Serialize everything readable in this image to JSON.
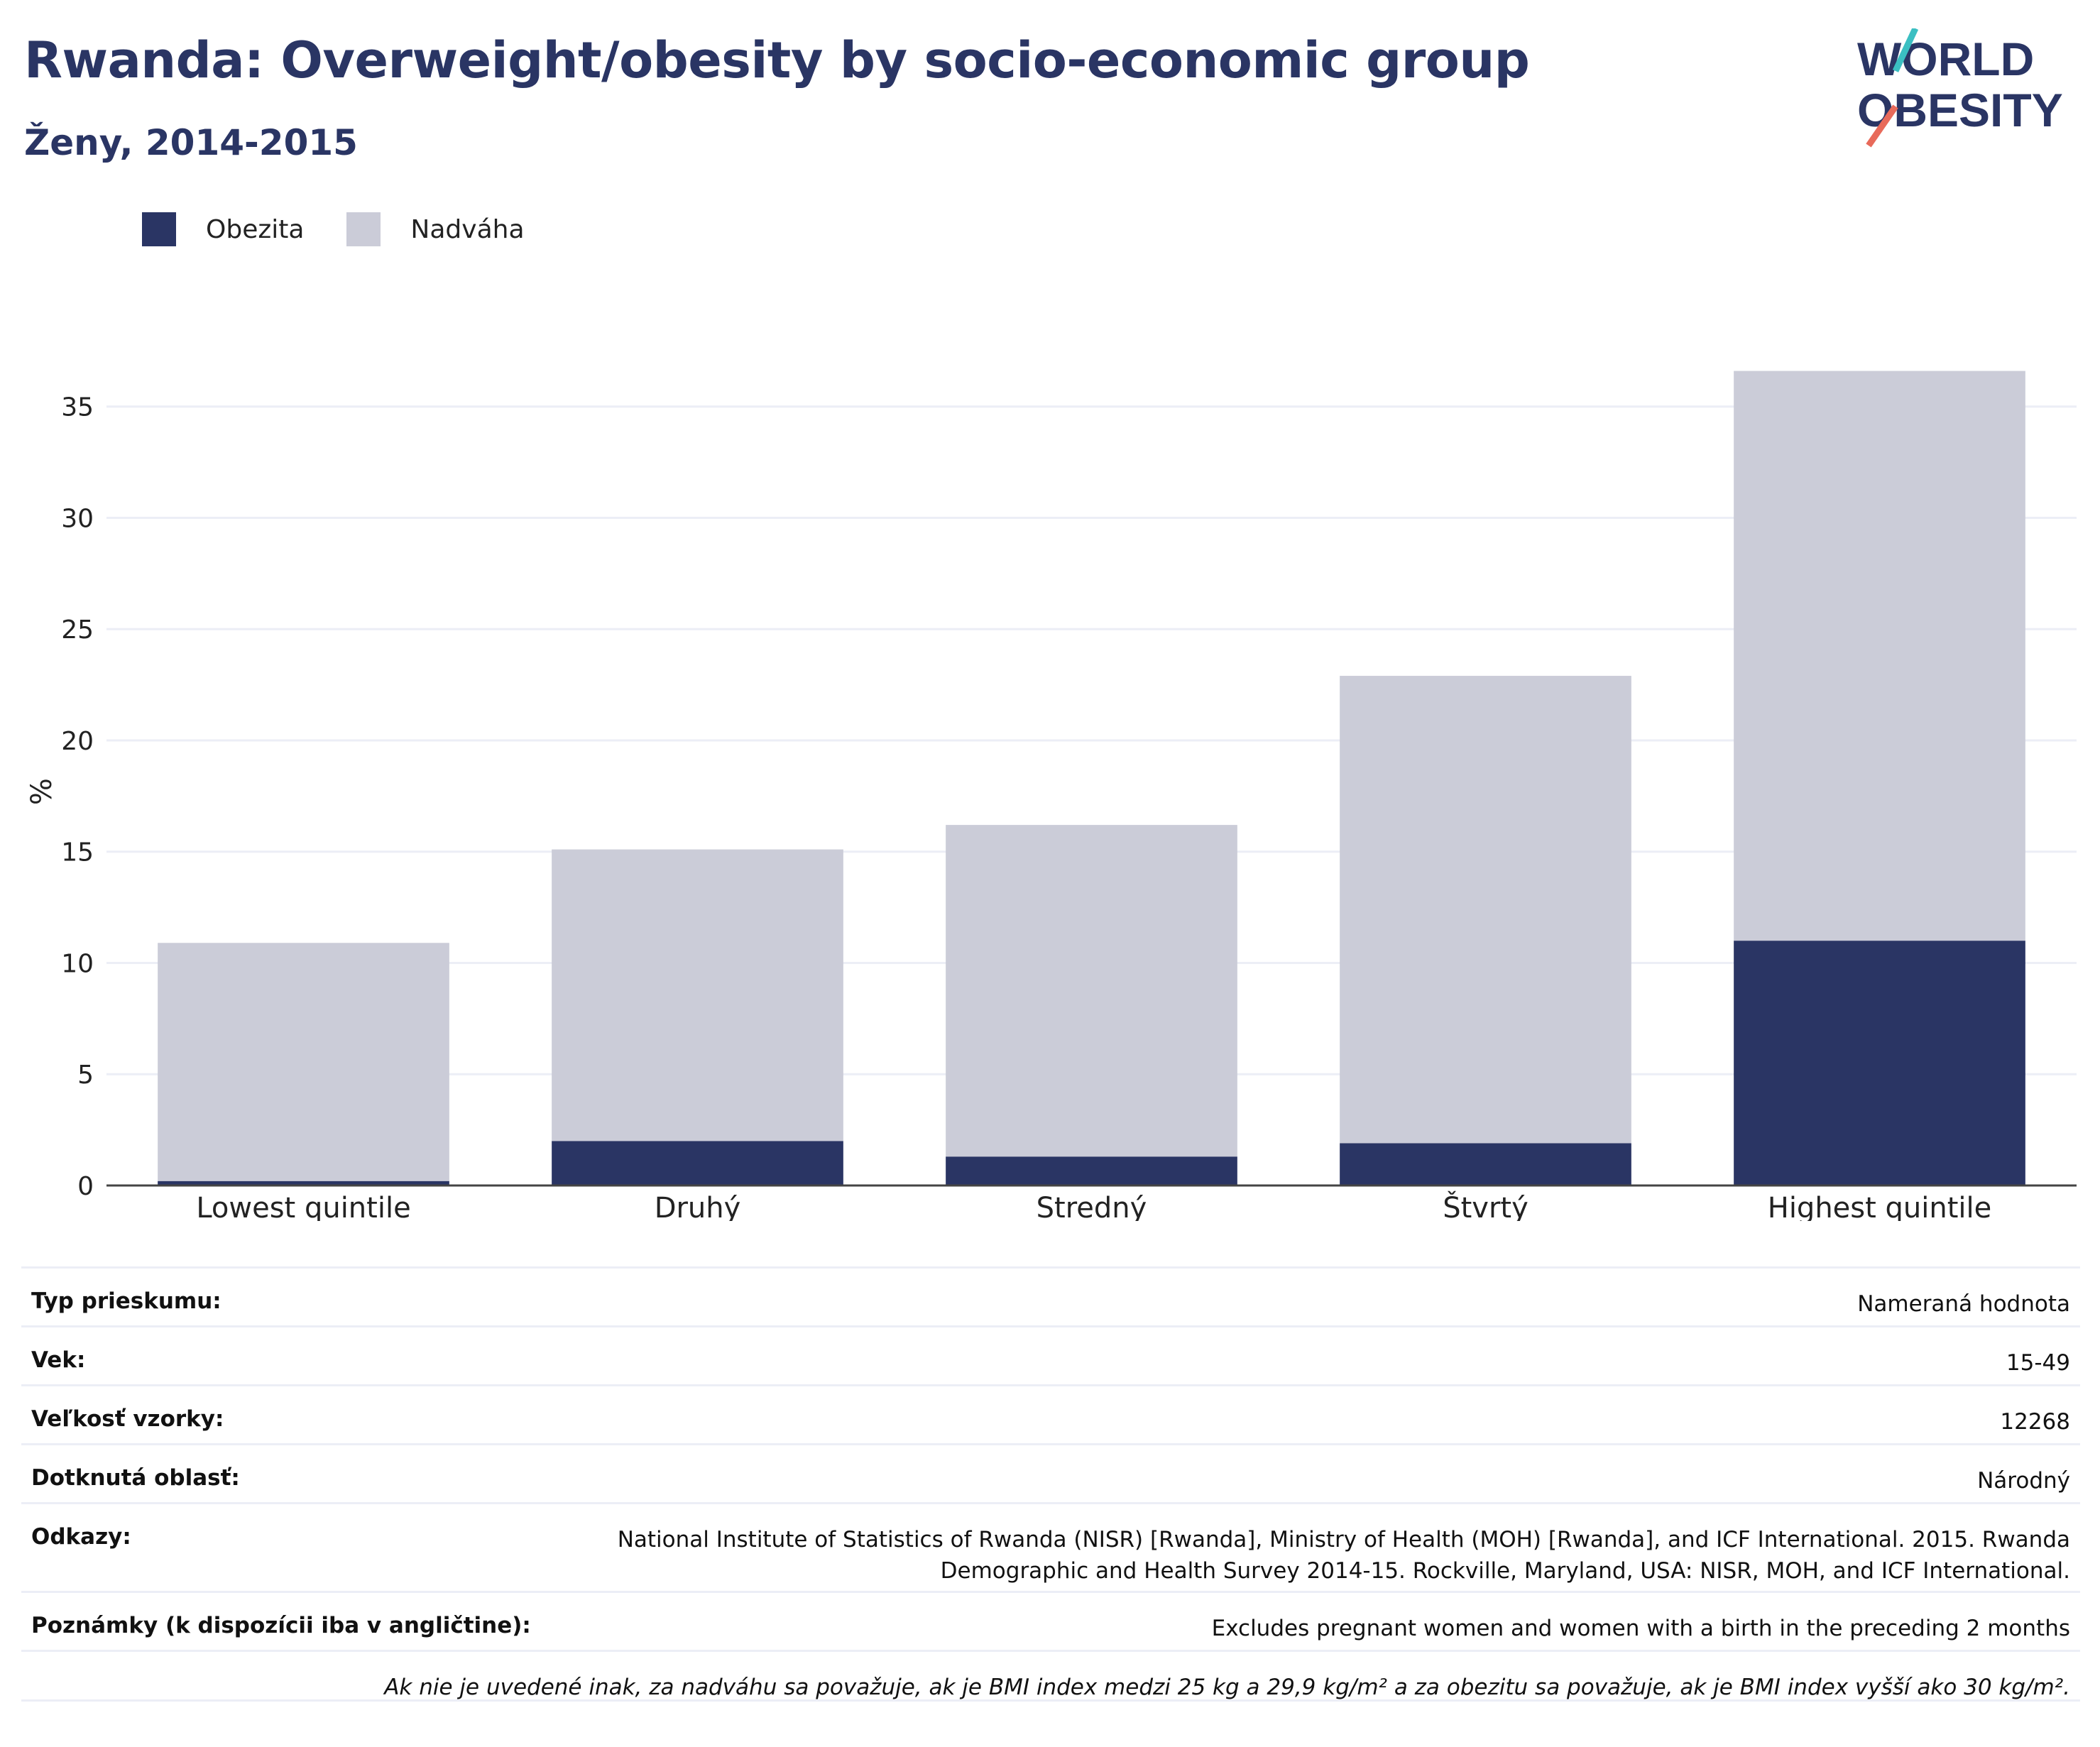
{
  "header": {
    "title": "Rwanda: Overweight/obesity by socio-economic group",
    "subtitle": "Ženy, 2014-2015"
  },
  "logo": {
    "line1": "WORLD",
    "line2": "OBESITY"
  },
  "colors": {
    "obesity": "#2a3564",
    "overweight": "#cbccd8",
    "title": "#2a3564",
    "grid": "#eceef6"
  },
  "chart_data": {
    "type": "bar",
    "stacked": true,
    "categories": [
      "Lowest quintile",
      "Druhý",
      "Stredný",
      "Štvrtý",
      "Highest quintile"
    ],
    "series": [
      {
        "name": "Obezita",
        "values": [
          0.2,
          2.0,
          1.3,
          1.9,
          11.0
        ]
      },
      {
        "name": "Nadváha",
        "values": [
          10.7,
          13.1,
          14.9,
          21.0,
          25.6
        ]
      }
    ],
    "ylabel": "%",
    "ylim": [
      0,
      37
    ],
    "yticks": [
      0,
      5,
      10,
      15,
      20,
      25,
      30,
      35
    ],
    "grid": true,
    "legend": "top-left"
  },
  "info": {
    "survey_type": {
      "label": "Typ prieskumu:",
      "value": "Nameraná hodnota"
    },
    "age": {
      "label": "Vek:",
      "value": "15-49"
    },
    "sample_size": {
      "label": "Veľkosť vzorky:",
      "value": "12268"
    },
    "area": {
      "label": "Dotknutá oblasť:",
      "value": "Národný"
    },
    "references": {
      "label": "Odkazy:",
      "value_line1": "National Institute of Statistics of Rwanda (NISR) [Rwanda], Ministry of Health (MOH) [Rwanda], and ICF International. 2015. Rwanda",
      "value_line2": "Demographic and Health Survey 2014-15. Rockville, Maryland, USA: NISR, MOH, and ICF International."
    },
    "notes": {
      "label": "Poznámky (k dispozícii iba v angličtine):",
      "value": "Excludes pregnant women and women with a birth in the preceding 2 months"
    },
    "footnote": "Ak nie je uvedené inak, za nadváhu sa považuje, ak je BMI index medzi 25 kg a 29,9 kg/m² a za obezitu sa považuje, ak je BMI index vyšší ako 30 kg/m²."
  }
}
